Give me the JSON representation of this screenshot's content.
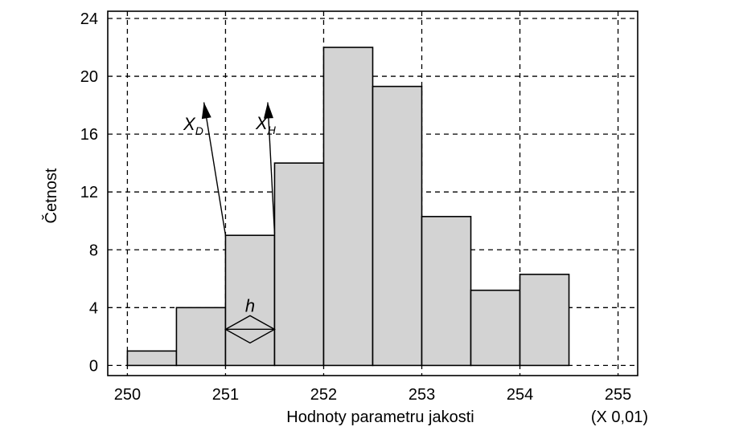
{
  "chart_data": {
    "type": "bar",
    "xlabel": "Hodnoty parametru jakosti",
    "ylabel": "Četnost",
    "xunit": "(X 0,01)",
    "xlim": [
      249.8,
      255.2
    ],
    "ylim": [
      -0.7,
      24.5
    ],
    "xticks": [
      250,
      251,
      252,
      253,
      254,
      255
    ],
    "yticks": [
      0,
      4,
      8,
      12,
      16,
      20,
      24
    ],
    "grid": true,
    "bin_width": 0.5,
    "bins": [
      {
        "start": 250.0,
        "end": 250.5,
        "value": 1
      },
      {
        "start": 250.5,
        "end": 251.0,
        "value": 4
      },
      {
        "start": 251.0,
        "end": 251.5,
        "value": 9
      },
      {
        "start": 251.5,
        "end": 252.0,
        "value": 14
      },
      {
        "start": 252.0,
        "end": 252.5,
        "value": 22
      },
      {
        "start": 252.5,
        "end": 253.0,
        "value": 19.3
      },
      {
        "start": 253.0,
        "end": 253.5,
        "value": 10.3
      },
      {
        "start": 253.5,
        "end": 254.0,
        "value": 5.2
      },
      {
        "start": 254.0,
        "end": 254.5,
        "value": 6.3
      }
    ],
    "annotations": {
      "xd": {
        "main": "X",
        "sub": "D"
      },
      "xh": {
        "main": "X",
        "sub": "H"
      },
      "h": "h"
    },
    "bar_color": "#d3d3d3"
  }
}
